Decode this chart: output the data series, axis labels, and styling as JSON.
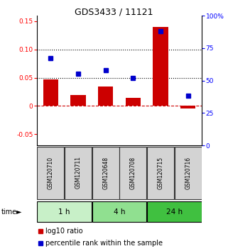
{
  "title": "GDS3433 / 11121",
  "samples": [
    "GSM120710",
    "GSM120711",
    "GSM120648",
    "GSM120708",
    "GSM120715",
    "GSM120716"
  ],
  "time_groups": [
    {
      "label": "1 h",
      "color": "#c8f0c8",
      "samples": [
        0,
        1
      ]
    },
    {
      "label": "4 h",
      "color": "#90e090",
      "samples": [
        2,
        3
      ]
    },
    {
      "label": "24 h",
      "color": "#40c040",
      "samples": [
        4,
        5
      ]
    }
  ],
  "log10_ratio": [
    0.047,
    0.019,
    0.034,
    0.014,
    0.14,
    -0.005
  ],
  "percentile_rank": [
    67,
    55,
    58,
    52,
    88,
    38
  ],
  "bar_color": "#cc0000",
  "dot_color": "#0000cc",
  "ylim_left": [
    -0.07,
    0.16
  ],
  "ylim_right": [
    0,
    100
  ],
  "yticks_left": [
    -0.05,
    0.0,
    0.05,
    0.1,
    0.15
  ],
  "yticks_right": [
    0,
    25,
    50,
    75,
    100
  ],
  "ytick_labels_left": [
    "-0.05",
    "0",
    "0.05",
    "0.10",
    "0.15"
  ],
  "ytick_labels_right": [
    "0",
    "25",
    "50",
    "75",
    "100%"
  ],
  "hlines": [
    0.05,
    0.1
  ],
  "zero_line_color": "#cc0000",
  "hline_color": "#000000",
  "sample_box_color": "#d3d3d3",
  "sample_box_border": "#333333"
}
